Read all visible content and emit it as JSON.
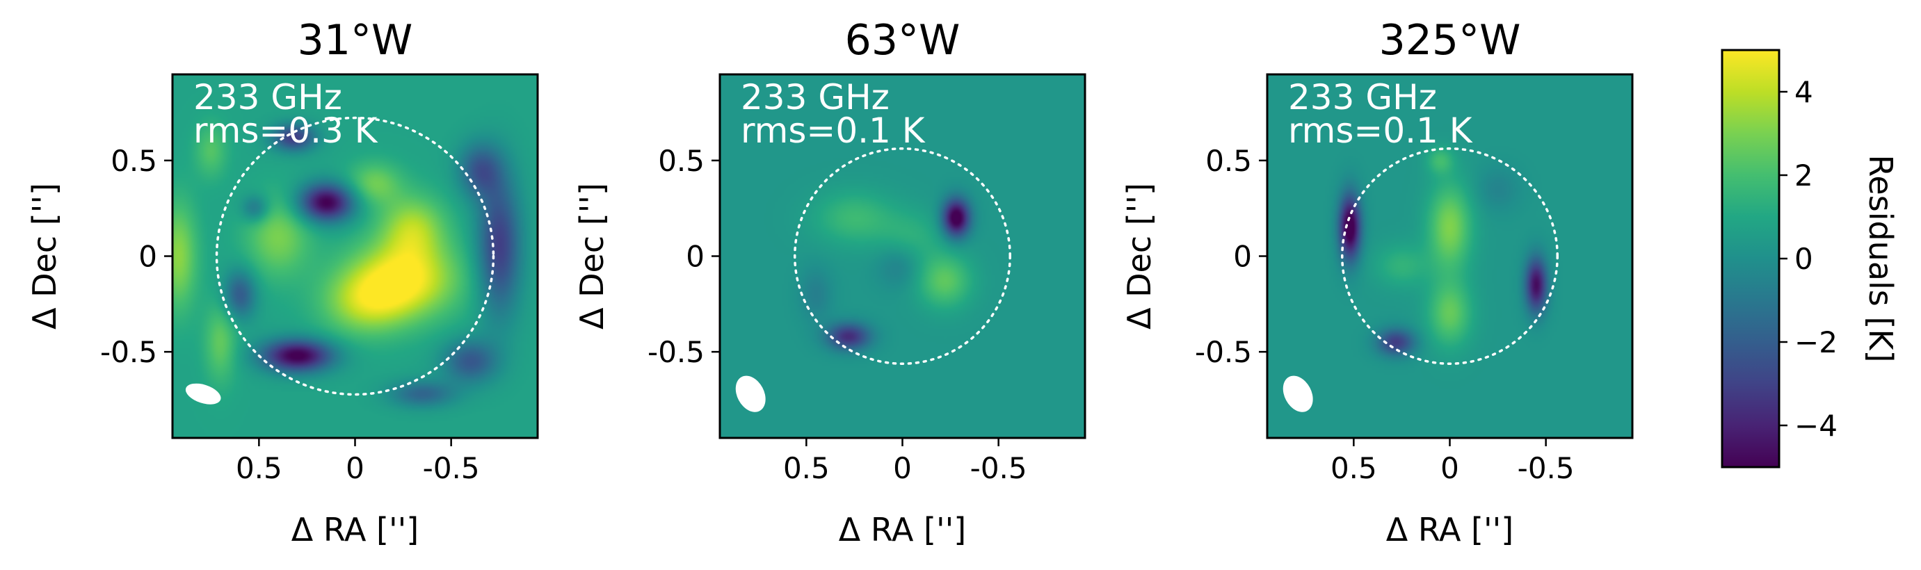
{
  "chart_data": {
    "type": "heatmap",
    "colormap": "viridis",
    "clim": [
      -5,
      5
    ],
    "xlim": [
      0.95,
      -0.95
    ],
    "ylim": [
      -0.95,
      0.95
    ],
    "xticks": [
      0.5,
      0,
      -0.5
    ],
    "xtick_labels": [
      "0.5",
      "0",
      "-0.5"
    ],
    "yticks": [
      0.5,
      0,
      -0.5
    ],
    "ytick_labels": [
      "0.5",
      "0",
      "-0.5"
    ],
    "xlabel": "Δ RA ['']",
    "ylabel": "Δ Dec ['']",
    "colorbar": {
      "label": "Residuals [K]",
      "ticks": [
        4,
        2,
        0,
        -2,
        -4
      ],
      "tick_labels": [
        "4",
        "2",
        "0",
        "−2",
        "−4"
      ]
    },
    "panels": [
      {
        "title": "31°W",
        "frequency": "233 GHz",
        "rms": "rms=0.3 K",
        "limb_radius": 0.72,
        "background": 0.8,
        "beam": {
          "x": 0.79,
          "y": -0.72,
          "a": 0.095,
          "b": 0.048,
          "angle": 18
        },
        "features": [
          {
            "x": -0.25,
            "y": -0.12,
            "sx": 0.2,
            "sy": 0.14,
            "amp": 4.2
          },
          {
            "x": -0.05,
            "y": -0.25,
            "sx": 0.16,
            "sy": 0.12,
            "amp": 2.5
          },
          {
            "x": -0.3,
            "y": 0.15,
            "sx": 0.12,
            "sy": 0.12,
            "amp": 2.8
          },
          {
            "x": -0.1,
            "y": 0.38,
            "sx": 0.1,
            "sy": 0.08,
            "amp": 2.0
          },
          {
            "x": 0.4,
            "y": 0.1,
            "sx": 0.12,
            "sy": 0.15,
            "amp": 2.2
          },
          {
            "x": 0.15,
            "y": 0.28,
            "sx": 0.1,
            "sy": 0.07,
            "amp": -6.0
          },
          {
            "x": 0.3,
            "y": -0.52,
            "sx": 0.13,
            "sy": 0.06,
            "amp": -6.0
          },
          {
            "x": 0.32,
            "y": 0.62,
            "sx": 0.08,
            "sy": 0.05,
            "amp": -4.0
          },
          {
            "x": 0.52,
            "y": 0.25,
            "sx": 0.05,
            "sy": 0.05,
            "amp": -2.2
          },
          {
            "x": 0.6,
            "y": -0.2,
            "sx": 0.06,
            "sy": 0.09,
            "amp": -3.0
          },
          {
            "x": -0.75,
            "y": 0.05,
            "sx": 0.08,
            "sy": 0.25,
            "amp": -4.0
          },
          {
            "x": -0.65,
            "y": 0.45,
            "sx": 0.08,
            "sy": 0.1,
            "amp": -3.0
          },
          {
            "x": -0.6,
            "y": -0.55,
            "sx": 0.1,
            "sy": 0.08,
            "amp": -3.0
          },
          {
            "x": -0.35,
            "y": -0.72,
            "sx": 0.12,
            "sy": 0.05,
            "amp": -2.5
          },
          {
            "x": 0.92,
            "y": 0.0,
            "sx": 0.07,
            "sy": 0.2,
            "amp": 2.5
          },
          {
            "x": 0.7,
            "y": -0.45,
            "sx": 0.06,
            "sy": 0.15,
            "amp": 1.8
          },
          {
            "x": 0.75,
            "y": 0.55,
            "sx": 0.06,
            "sy": 0.1,
            "amp": 1.5
          }
        ]
      },
      {
        "title": "63°W",
        "frequency": "233 GHz",
        "rms": "rms=0.1 K",
        "limb_radius": 0.56,
        "background": 0.3,
        "beam": {
          "x": 0.79,
          "y": -0.72,
          "a": 0.1,
          "b": 0.07,
          "angle": 62
        },
        "features": [
          {
            "x": 0.25,
            "y": 0.2,
            "sx": 0.15,
            "sy": 0.1,
            "amp": 1.5
          },
          {
            "x": -0.22,
            "y": -0.13,
            "sx": 0.1,
            "sy": 0.1,
            "amp": 2.2
          },
          {
            "x": -0.05,
            "y": 0.1,
            "sx": 0.12,
            "sy": 0.1,
            "amp": 1.0
          },
          {
            "x": -0.28,
            "y": 0.2,
            "sx": 0.05,
            "sy": 0.07,
            "amp": -6.0
          },
          {
            "x": 0.28,
            "y": -0.42,
            "sx": 0.08,
            "sy": 0.05,
            "amp": -4.0
          },
          {
            "x": 0.02,
            "y": -0.05,
            "sx": 0.08,
            "sy": 0.08,
            "amp": -1.0
          },
          {
            "x": 0.45,
            "y": -0.2,
            "sx": 0.06,
            "sy": 0.1,
            "amp": -1.0
          }
        ]
      },
      {
        "title": "325°W",
        "frequency": "233 GHz",
        "rms": "rms=0.1 K",
        "limb_radius": 0.56,
        "background": 0.3,
        "beam": {
          "x": 0.79,
          "y": -0.72,
          "a": 0.1,
          "b": 0.07,
          "angle": 62
        },
        "features": [
          {
            "x": 0.0,
            "y": 0.15,
            "sx": 0.08,
            "sy": 0.16,
            "amp": 2.8
          },
          {
            "x": 0.0,
            "y": -0.3,
            "sx": 0.08,
            "sy": 0.12,
            "amp": 2.3
          },
          {
            "x": 0.25,
            "y": -0.05,
            "sx": 0.1,
            "sy": 0.08,
            "amp": 1.2
          },
          {
            "x": 0.05,
            "y": 0.5,
            "sx": 0.05,
            "sy": 0.05,
            "amp": 1.5
          },
          {
            "x": 0.52,
            "y": 0.15,
            "sx": 0.04,
            "sy": 0.12,
            "amp": -6.0
          },
          {
            "x": -0.45,
            "y": -0.15,
            "sx": 0.04,
            "sy": 0.1,
            "amp": -5.0
          },
          {
            "x": 0.28,
            "y": -0.45,
            "sx": 0.07,
            "sy": 0.05,
            "amp": -3.5
          },
          {
            "x": -0.25,
            "y": 0.35,
            "sx": 0.08,
            "sy": 0.08,
            "amp": -0.8
          }
        ]
      }
    ]
  }
}
